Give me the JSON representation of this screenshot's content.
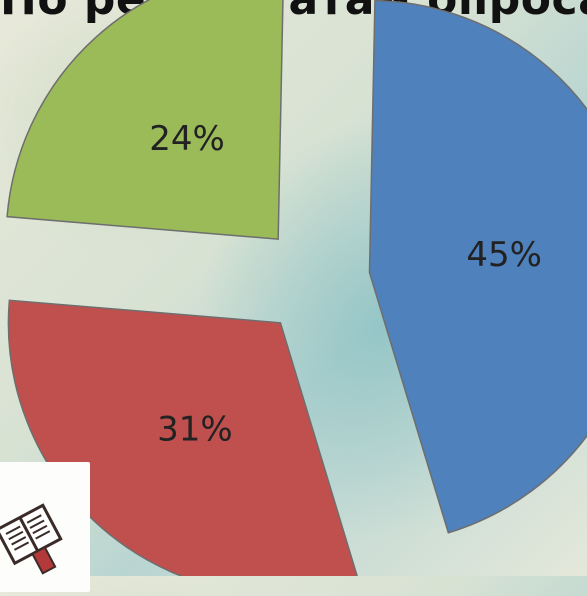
{
  "title": "По результатам опроса",
  "chart_data": {
    "type": "pie",
    "categories": [
      "",
      "",
      ""
    ],
    "values": [
      45,
      31,
      24
    ],
    "labels": [
      "45%",
      "31%",
      "24%"
    ],
    "colors": [
      "#4f81bd",
      "#c0504d",
      "#9bbb59"
    ]
  },
  "decoration": {
    "icon": "book-icon"
  }
}
